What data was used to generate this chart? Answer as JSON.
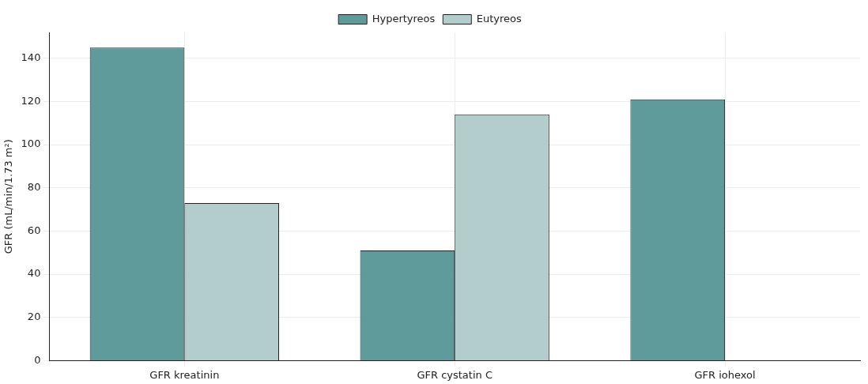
{
  "chart_data": {
    "type": "bar",
    "ylabel": "GFR (mL/min/1.73 m²)",
    "categories": [
      "GFR kreatinin",
      "GFR cystatin C",
      "GFR iohexol"
    ],
    "series": [
      {
        "name": "Hypertyreos",
        "color": "#5f9b9b",
        "values": [
          145,
          51,
          121
        ]
      },
      {
        "name": "Eutyreos",
        "color": "#b3cccc",
        "values": [
          73,
          114,
          null
        ]
      }
    ],
    "ylim": [
      0,
      152
    ],
    "yticks": [
      0,
      20,
      40,
      60,
      80,
      100,
      120,
      140
    ],
    "grid": true,
    "legend": "top"
  }
}
